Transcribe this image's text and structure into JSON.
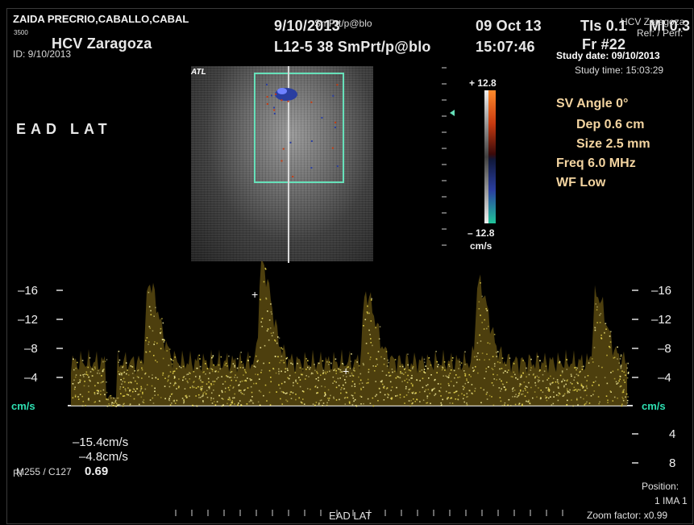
{
  "header": {
    "patient_name": "ZAIDA PRECRIO,CABALLO,CABAL",
    "hospital": "HCV Zaragoza",
    "patient_id": "ID: 9/10/2013",
    "exam_date": "9/10/2013",
    "probe_preset": "L12-5 38 SmPrt/p@blo",
    "overlay_preset": "SmPrt/p@blo",
    "date": "09 Oct 13",
    "time": "15:07:46",
    "ti": "TIs 0.1",
    "mi": "MI 0.3",
    "hospital_right": "HCV Zaragoza",
    "ref": "Ref: / Perf:",
    "frame_rate": "Fr #22",
    "study_date": "Study date: 09/10/2013",
    "study_time": "Study time: 15:03:29",
    "small_logo": "3500"
  },
  "label_ead_lat": "EAD  LAT",
  "atl_logo": "ATL",
  "doppler_params": {
    "sv_angle": "SV Angle 0°",
    "depth": "Dep 0.6  cm",
    "size": "Size 2.5  mm",
    "freq": "Freq 6.0  MHz",
    "wf": "WF Low"
  },
  "color_bar": {
    "top": "+ 12.8",
    "bottom": "– 12.8",
    "unit": "cm/s",
    "colors": [
      "#ff8a2b",
      "#c73a10",
      "#2a3ea0",
      "#20c49a"
    ]
  },
  "spectrum_scale": {
    "left_labels": [
      "–16",
      "–12",
      "–8",
      "–4"
    ],
    "right_labels": [
      "–16",
      "–12",
      "–8",
      "–4"
    ],
    "below_labels": [
      "4",
      "8"
    ],
    "unit": "cm/s"
  },
  "measurements": {
    "peak": "–15.4cm/s",
    "min": "–4.8cm/s",
    "ri_value": "0.69",
    "ri_prefix": "RI",
    "dynamic": "M255 / C127"
  },
  "footer": {
    "bottom_label": "EAD LAT",
    "position_label": "Position:",
    "image_index": "1 IMA 1",
    "zoom": "Zoom factor: x0.99"
  },
  "colors": {
    "spectrum": "#e6d44a",
    "baseline": "#d8d8d8",
    "roi": "#66e0b9",
    "unit_text": "#2ee0b2",
    "param_text": "#f3d4a0"
  }
}
